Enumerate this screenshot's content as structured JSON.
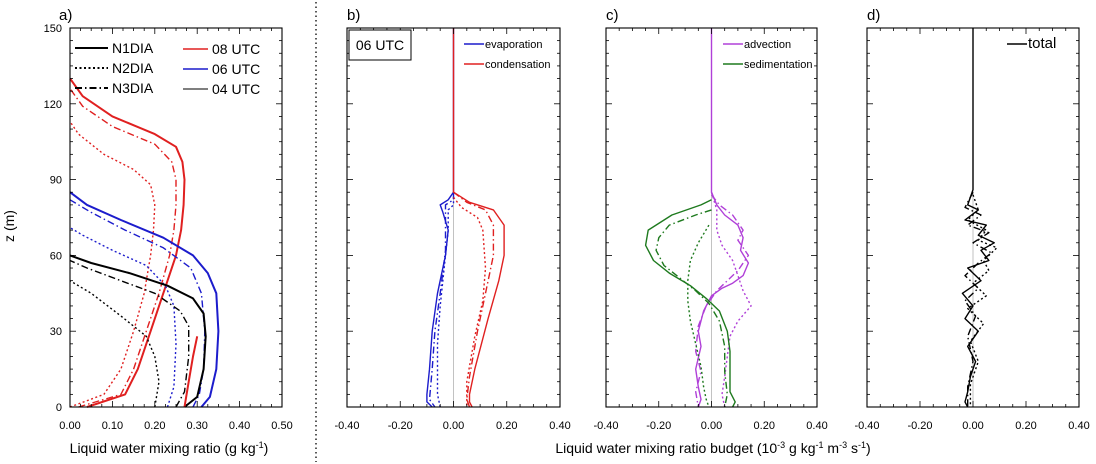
{
  "figure": {
    "xlabel_left": "Liquid water mixing ratio (g kg",
    "xlabel_left_sup": "-1",
    "xlabel_left_end": ")",
    "xlabel_right_a": "Liquid water mixing ratio budget (10",
    "xlabel_right_sup1": "-3",
    "xlabel_right_b": " g kg",
    "xlabel_right_sup2": "-1",
    "xlabel_right_c": " m",
    "xlabel_right_sup3": "-3",
    "xlabel_right_d": " s",
    "xlabel_right_sup4": "-1",
    "xlabel_right_e": ")",
    "ylabel": "z (m)"
  },
  "chart_data": [
    {
      "type": "line",
      "panel_label": "a)",
      "xlim": [
        0,
        0.5
      ],
      "ylim": [
        0,
        150
      ],
      "xticks": [
        "0.00",
        "0.10",
        "0.20",
        "0.30",
        "0.40",
        "0.50"
      ],
      "yticks": [
        "0",
        "30",
        "60",
        "90",
        "120",
        "150"
      ],
      "legend_styles": [
        {
          "name": "N1DIA",
          "dash": "solid"
        },
        {
          "name": "N2DIA",
          "dash": "dotted"
        },
        {
          "name": "N3DIA",
          "dash": "dashdot"
        }
      ],
      "legend_times": [
        {
          "name": "08 UTC",
          "color": "#e02020"
        },
        {
          "name": "06 UTC",
          "color": "#1c1ccc"
        },
        {
          "name": "04 UTC",
          "color": "#555555"
        }
      ],
      "series": [
        {
          "color": "#e02020",
          "dash": "solid",
          "x": [
            0.04,
            0.13,
            0.16,
            0.19,
            0.22,
            0.25,
            0.262,
            0.268,
            0.27,
            0.265,
            0.25,
            0.2,
            0.1,
            0.03,
            0.0
          ],
          "y": [
            0,
            5,
            15,
            30,
            45,
            60,
            70,
            80,
            90,
            97,
            103,
            108,
            115,
            123,
            130
          ]
        },
        {
          "color": "#e02020",
          "dash": "dashdot",
          "x": [
            0.02,
            0.12,
            0.15,
            0.18,
            0.21,
            0.235,
            0.245,
            0.25,
            0.25,
            0.24,
            0.2,
            0.1,
            0.03,
            0.0
          ],
          "y": [
            0,
            5,
            15,
            30,
            45,
            60,
            70,
            80,
            90,
            97,
            104,
            111,
            119,
            126
          ]
        },
        {
          "color": "#e02020",
          "dash": "dotted",
          "x": [
            0.0,
            0.08,
            0.12,
            0.15,
            0.175,
            0.19,
            0.197,
            0.2,
            0.19,
            0.15,
            0.08,
            0.02,
            0.0
          ],
          "y": [
            0,
            5,
            15,
            30,
            45,
            60,
            70,
            80,
            88,
            94,
            100,
            108,
            113
          ]
        },
        {
          "color": "#1c1ccc",
          "dash": "solid",
          "x": [
            0.31,
            0.33,
            0.345,
            0.35,
            0.345,
            0.325,
            0.29,
            0.22,
            0.12,
            0.04,
            0.0
          ],
          "y": [
            0,
            4,
            15,
            30,
            45,
            53,
            60,
            67,
            74,
            80,
            85
          ]
        },
        {
          "color": "#1c1ccc",
          "dash": "dashdot",
          "x": [
            0.29,
            0.305,
            0.315,
            0.318,
            0.31,
            0.285,
            0.22,
            0.13,
            0.05,
            0.0
          ],
          "y": [
            0,
            5,
            15,
            30,
            45,
            55,
            63,
            70,
            77,
            82
          ]
        },
        {
          "color": "#1c1ccc",
          "dash": "dotted",
          "x": [
            0.23,
            0.245,
            0.25,
            0.245,
            0.225,
            0.18,
            0.1,
            0.03,
            0.0
          ],
          "y": [
            0,
            8,
            25,
            40,
            48,
            56,
            62,
            68,
            71
          ]
        },
        {
          "color": "#000000",
          "dash": "solid",
          "x": [
            0.27,
            0.3,
            0.315,
            0.32,
            0.315,
            0.29,
            0.23,
            0.14,
            0.05,
            0.0
          ],
          "y": [
            0,
            4,
            15,
            28,
            37,
            43,
            48,
            53,
            57,
            60
          ]
        },
        {
          "color": "#000000",
          "dash": "dashdot",
          "x": [
            0.25,
            0.27,
            0.28,
            0.28,
            0.26,
            0.2,
            0.12,
            0.04,
            0.0
          ],
          "y": [
            0,
            6,
            20,
            32,
            38,
            45,
            50,
            55,
            58
          ]
        },
        {
          "color": "#000000",
          "dash": "dotted",
          "x": [
            0.2,
            0.21,
            0.2,
            0.18,
            0.12,
            0.05,
            0.0
          ],
          "y": [
            0,
            10,
            20,
            28,
            36,
            45,
            50
          ]
        },
        {
          "color": "#e02020",
          "dash": "solid",
          "x": [
            0.27,
            0.28,
            0.29,
            0.3
          ],
          "y": [
            0,
            10,
            20,
            28
          ]
        }
      ]
    },
    {
      "type": "line",
      "panel_label": "b)",
      "inset_label": "06 UTC",
      "xlim": [
        -0.4,
        0.4
      ],
      "ylim": [
        0,
        150
      ],
      "xticks": [
        "-0.40",
        "-0.20",
        "0.00",
        "0.20",
        "0.40"
      ],
      "legend": [
        {
          "name": "evaporation",
          "color": "#1c1ccc"
        },
        {
          "name": "condensation",
          "color": "#e02020"
        }
      ],
      "series": [
        {
          "color": "#1c1ccc",
          "dash": "solid",
          "x": [
            0.0,
            0.0,
            -0.02,
            -0.05,
            -0.04,
            -0.02,
            -0.03,
            -0.06,
            -0.08,
            -0.09,
            -0.1,
            -0.1,
            -0.08
          ],
          "y": [
            150,
            85,
            82,
            80,
            77,
            70,
            60,
            45,
            30,
            15,
            5,
            2,
            0
          ]
        },
        {
          "color": "#1c1ccc",
          "dash": "dashdot",
          "x": [
            0.0,
            0.0,
            -0.03,
            -0.03,
            -0.03,
            -0.05,
            -0.07,
            -0.08,
            -0.09,
            -0.07
          ],
          "y": [
            85,
            82,
            80,
            75,
            62,
            45,
            30,
            15,
            3,
            0
          ]
        },
        {
          "color": "#1c1ccc",
          "dash": "dotted",
          "x": [
            0.0,
            0.0,
            -0.02,
            -0.02,
            -0.03,
            -0.05,
            -0.06,
            -0.06,
            -0.05
          ],
          "y": [
            85,
            80,
            78,
            70,
            60,
            40,
            25,
            5,
            0
          ]
        },
        {
          "color": "#e02020",
          "dash": "solid",
          "x": [
            0.0,
            0.0,
            0.06,
            0.15,
            0.19,
            0.19,
            0.17,
            0.13,
            0.08,
            0.06,
            0.06,
            0.07
          ],
          "y": [
            150,
            85,
            81,
            78,
            72,
            60,
            50,
            35,
            15,
            5,
            2,
            0
          ]
        },
        {
          "color": "#e02020",
          "dash": "dashdot",
          "x": [
            0.0,
            0.05,
            0.12,
            0.15,
            0.15,
            0.12,
            0.09,
            0.06,
            0.05,
            0.06
          ],
          "y": [
            85,
            81,
            78,
            72,
            60,
            45,
            30,
            12,
            3,
            0
          ]
        },
        {
          "color": "#e02020",
          "dash": "dotted",
          "x": [
            0.0,
            0.03,
            0.09,
            0.11,
            0.12,
            0.11,
            0.08,
            0.05,
            0.05
          ],
          "y": [
            83,
            79,
            75,
            70,
            55,
            42,
            28,
            10,
            0
          ]
        }
      ]
    },
    {
      "type": "line",
      "panel_label": "c)",
      "xlim": [
        -0.4,
        0.4
      ],
      "ylim": [
        0,
        150
      ],
      "xticks": [
        "-0.40",
        "-0.20",
        "0.00",
        "0.20",
        "0.40"
      ],
      "legend": [
        {
          "name": "advection",
          "color": "#b040d8"
        },
        {
          "name": "sedimentation",
          "color": "#1e7a1e"
        }
      ],
      "series": [
        {
          "color": "#b040d8",
          "dash": "solid",
          "x": [
            0.0,
            0.0,
            0.02,
            0.05,
            0.1,
            0.12,
            0.11,
            0.14,
            0.12,
            0.08,
            0.04,
            0.0,
            -0.03,
            -0.05,
            -0.04,
            -0.06,
            -0.05,
            -0.04,
            -0.05
          ],
          "y": [
            150,
            85,
            80,
            76,
            72,
            67,
            62,
            57,
            52,
            49,
            47,
            44,
            38,
            30,
            24,
            15,
            8,
            3,
            0
          ]
        },
        {
          "color": "#b040d8",
          "dash": "dashdot",
          "x": [
            0.0,
            0.03,
            0.08,
            0.12,
            0.1,
            0.14,
            0.1,
            0.06,
            0.02,
            -0.02,
            -0.05,
            -0.06,
            -0.04,
            -0.06,
            -0.05
          ],
          "y": [
            84,
            80,
            76,
            70,
            66,
            60,
            54,
            50,
            46,
            40,
            32,
            22,
            14,
            6,
            0
          ]
        },
        {
          "color": "#b040d8",
          "dash": "dotted",
          "x": [
            0.0,
            0.02,
            0.02,
            0.04,
            0.08,
            0.1,
            0.12,
            0.15,
            0.1,
            0.07,
            0.06,
            0.05,
            0.04,
            0.05
          ],
          "y": [
            85,
            78,
            70,
            64,
            58,
            52,
            46,
            40,
            34,
            28,
            20,
            12,
            5,
            0
          ]
        },
        {
          "color": "#1e7a1e",
          "dash": "solid",
          "x": [
            0.0,
            -0.04,
            -0.15,
            -0.24,
            -0.25,
            -0.22,
            -0.16,
            -0.08,
            -0.02,
            0.03,
            0.06,
            0.07,
            0.07,
            0.07,
            0.09,
            0.08
          ],
          "y": [
            82,
            80,
            76,
            70,
            64,
            58,
            53,
            48,
            43,
            38,
            30,
            22,
            12,
            6,
            2,
            0
          ]
        },
        {
          "color": "#1e7a1e",
          "dash": "dashdot",
          "x": [
            0.0,
            -0.06,
            -0.16,
            -0.2,
            -0.21,
            -0.18,
            -0.12,
            -0.06,
            -0.01,
            0.03,
            0.05,
            0.05,
            0.06,
            0.05
          ],
          "y": [
            78,
            76,
            72,
            67,
            62,
            56,
            51,
            46,
            41,
            34,
            24,
            14,
            5,
            0
          ]
        },
        {
          "color": "#1e7a1e",
          "dash": "dotted",
          "x": [
            -0.01,
            -0.05,
            -0.08,
            -0.09,
            -0.09,
            -0.08,
            -0.06,
            -0.04,
            -0.03,
            -0.02,
            -0.01
          ],
          "y": [
            72,
            65,
            58,
            50,
            42,
            34,
            25,
            16,
            8,
            3,
            0
          ]
        }
      ]
    },
    {
      "type": "line",
      "panel_label": "d)",
      "xlim": [
        -0.4,
        0.4
      ],
      "ylim": [
        0,
        150
      ],
      "xticks": [
        "-0.40",
        "-0.20",
        "0.00",
        "0.20",
        "0.40"
      ],
      "legend": [
        {
          "name": "total",
          "color": "#000000"
        }
      ],
      "series": [
        {
          "color": "#000000",
          "dash": "solid",
          "x": [
            0.0,
            0.0,
            -0.02,
            0.02,
            -0.03,
            0.05,
            0.02,
            0.08,
            0.03,
            0.06,
            -0.02,
            0.03,
            -0.04,
            0.0,
            -0.03,
            0.02,
            -0.02,
            0.01,
            -0.01,
            -0.02,
            -0.03,
            -0.02
          ],
          "y": [
            150,
            86,
            80,
            78,
            74,
            72,
            68,
            65,
            62,
            58,
            55,
            50,
            45,
            40,
            35,
            30,
            24,
            18,
            12,
            6,
            2,
            0
          ]
        },
        {
          "color": "#000000",
          "dash": "dashdot",
          "x": [
            0.0,
            -0.03,
            0.03,
            -0.02,
            0.06,
            0.0,
            0.07,
            0.02,
            -0.03,
            0.02,
            -0.03,
            0.01,
            -0.02,
            0.0,
            -0.02,
            -0.02
          ],
          "y": [
            85,
            79,
            76,
            72,
            69,
            65,
            61,
            57,
            52,
            47,
            42,
            36,
            28,
            18,
            8,
            0
          ]
        },
        {
          "color": "#000000",
          "dash": "dotted",
          "x": [
            0.0,
            0.02,
            -0.02,
            0.05,
            0.02,
            0.09,
            0.04,
            0.06,
            0.0,
            0.05,
            -0.02,
            0.04,
            -0.01,
            0.02,
            -0.01,
            -0.01
          ],
          "y": [
            84,
            78,
            74,
            70,
            66,
            63,
            58,
            54,
            49,
            44,
            39,
            33,
            26,
            18,
            9,
            0
          ]
        }
      ]
    }
  ]
}
